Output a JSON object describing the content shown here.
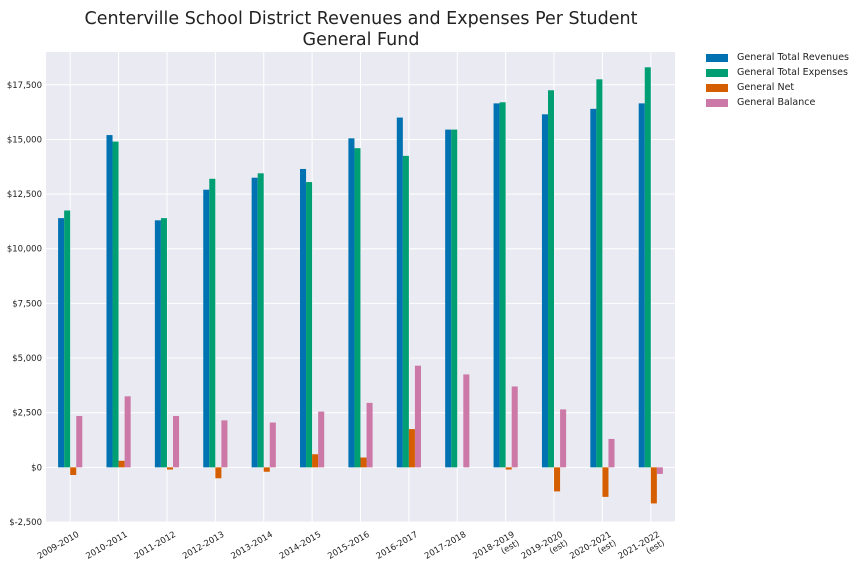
{
  "chart_data": {
    "type": "bar",
    "title_line1": "Centerville School District Revenues and Expenses Per Student",
    "title_line2": "General Fund",
    "xlabel": "",
    "ylabel": "",
    "ylim": [
      -2500,
      19000
    ],
    "yticks": [
      -2500,
      0,
      2500,
      5000,
      7500,
      10000,
      12500,
      15000,
      17500
    ],
    "ytick_labels": [
      "$-2,500",
      "$0",
      "$2,500",
      "$5,000",
      "$7,500",
      "$10,000",
      "$12,500",
      "$15,000",
      "$17,500"
    ],
    "grid": true,
    "legend_position": "outside-top-right",
    "categories": [
      [
        "2009-2010"
      ],
      [
        "2010-2011"
      ],
      [
        "2011-2012"
      ],
      [
        "2012-2013"
      ],
      [
        "2013-2014"
      ],
      [
        "2014-2015"
      ],
      [
        "2015-2016"
      ],
      [
        "2016-2017"
      ],
      [
        "2017-2018"
      ],
      [
        "2018-2019",
        "(est)"
      ],
      [
        "2019-2020",
        "(est)"
      ],
      [
        "2020-2021",
        "(est)"
      ],
      [
        "2021-2022",
        "(est)"
      ]
    ],
    "series": [
      {
        "name": "General Total Revenues",
        "color": "#0072b2",
        "values": [
          11400,
          15200,
          11300,
          12700,
          13250,
          13650,
          15050,
          16000,
          15450,
          16650,
          16150,
          16400,
          16650
        ]
      },
      {
        "name": "General Total Expenses",
        "color": "#009e73",
        "values": [
          11750,
          14900,
          11400,
          13200,
          13450,
          13050,
          14600,
          14250,
          15450,
          16700,
          17250,
          17750,
          18300
        ]
      },
      {
        "name": "General Net",
        "color": "#d55e00",
        "values": [
          -350,
          300,
          -100,
          -500,
          -200,
          600,
          450,
          1750,
          0,
          -100,
          -1100,
          -1350,
          -1650
        ]
      },
      {
        "name": "General Balance",
        "color": "#cc79a7",
        "values": [
          2350,
          3250,
          2350,
          2150,
          2050,
          2550,
          2950,
          4650,
          4250,
          3700,
          2650,
          1300,
          -300
        ]
      }
    ]
  }
}
